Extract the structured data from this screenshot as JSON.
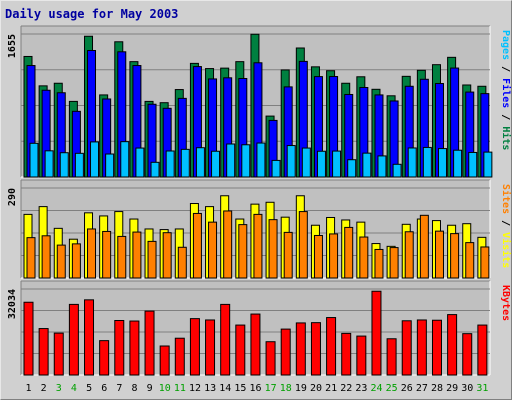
{
  "chart_data": {
    "type": "bar",
    "title": "Daily usage for May 2003",
    "categories": [
      "1",
      "2",
      "3",
      "4",
      "5",
      "6",
      "7",
      "8",
      "9",
      "10",
      "11",
      "12",
      "13",
      "14",
      "15",
      "16",
      "17",
      "18",
      "19",
      "20",
      "21",
      "22",
      "23",
      "24",
      "25",
      "26",
      "27",
      "28",
      "29",
      "30",
      "31"
    ],
    "weekend_categories": [
      "3",
      "4",
      "10",
      "11",
      "17",
      "18",
      "24",
      "25",
      "31"
    ],
    "panels": [
      {
        "id": "top",
        "max_label": "1655",
        "ymax": 1655,
        "axis_labels": [
          {
            "text": "Pages",
            "color": "#00c0ff"
          },
          {
            "text": " / ",
            "color": "#000000"
          },
          {
            "text": "Files",
            "color": "#0000ff"
          },
          {
            "text": " / ",
            "color": "#000000"
          },
          {
            "text": "Hits",
            "color": "#008040"
          }
        ],
        "series": [
          {
            "name": "Hits",
            "color": "#008040",
            "values": [
              1395,
              1055,
              1085,
              875,
              1629,
              950,
              1565,
              1335,
              875,
              860,
              1012,
              1315,
              1255,
              1260,
              1335,
              1652,
              705,
              1239,
              1493,
              1275,
              1230,
              1085,
              1160,
              1015,
              940,
              1165,
              1235,
              1300,
              1385,
              1065,
              1050
            ]
          },
          {
            "name": "Files",
            "color": "#0000ff",
            "values": [
              1290,
              1004,
              975,
              760,
              1464,
              903,
              1449,
              1290,
              842,
              795,
              910,
              1278,
              1135,
              1148,
              1140,
              1322,
              655,
              1043,
              1338,
              1162,
              1163,
              955,
              1036,
              950,
              880,
              1050,
              1131,
              1082,
              1261,
              983,
              965
            ]
          },
          {
            "name": "Pages",
            "color": "#00c0ff",
            "values": [
              390,
              303,
              281,
              274,
              406,
              266,
              409,
              335,
              170,
              301,
              320,
              339,
              298,
              382,
              373,
              393,
              192,
              364,
              335,
              298,
              300,
              200,
              276,
              244,
              147,
              336,
              342,
              329,
              310,
              284,
              288
            ]
          }
        ]
      },
      {
        "id": "middle",
        "max_label": "290",
        "ymax": 290,
        "axis_labels": [
          {
            "text": "Sites",
            "color": "#ff8000"
          },
          {
            "text": " / ",
            "color": "#000000"
          },
          {
            "text": "Visits",
            "color": "#ffff00"
          }
        ],
        "series": [
          {
            "name": "Visits",
            "color": "#ffff00",
            "values": [
              205,
              230,
              160,
              125,
              210,
              200,
              214,
              190,
              158,
              156,
              158,
              240,
              230,
              265,
              190,
              238,
              244,
              196,
              265,
              170,
              195,
              187,
              180,
              111,
              102,
              173,
              190,
              185,
              170,
              175,
              131
            ]
          },
          {
            "name": "Sites",
            "color": "#ff8000",
            "values": [
              130,
              136,
              106,
              110,
              158,
              150,
              134,
              148,
              118,
              146,
              99,
              208,
              180,
              216,
              172,
              205,
              188,
              147,
              214,
              137,
              142,
              163,
              132,
              92,
              98,
              149,
              202,
              151,
              143,
              114,
              100
            ]
          }
        ]
      },
      {
        "id": "bottom",
        "max_label": "32034",
        "ymax": 32034,
        "axis_labels": [
          {
            "text": "KBytes",
            "color": "#ff0000"
          }
        ],
        "series": [
          {
            "name": "KBytes",
            "color": "#ff0000",
            "values": [
              27100,
              17300,
              15600,
              26300,
              28000,
              12800,
              20300,
              20100,
              23800,
              10800,
              13700,
              21000,
              20500,
              26300,
              18600,
              22700,
              12400,
              17100,
              19400,
              19500,
              21400,
              15500,
              14500,
              31200,
              13500,
              20200,
              20500,
              20400,
              22500,
              15400,
              18600
            ]
          }
        ]
      }
    ]
  }
}
